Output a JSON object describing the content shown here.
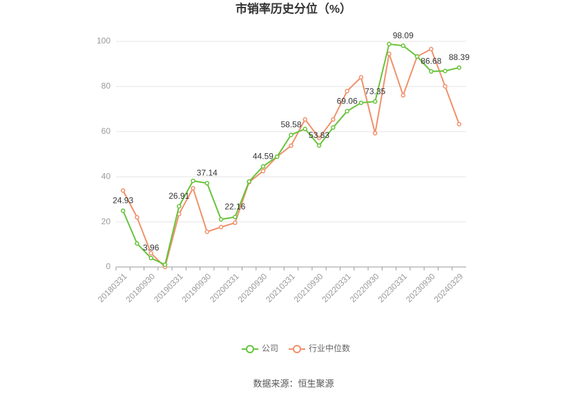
{
  "chart_data": {
    "type": "line",
    "title": "市销率历史分位（%）",
    "categories": [
      "20180331",
      null,
      "20180930",
      null,
      "20190331",
      null,
      "20190930",
      null,
      "20200331",
      null,
      "20200930",
      null,
      "20210331",
      null,
      "20210930",
      null,
      "20220331",
      null,
      "20220930",
      null,
      "20230331",
      null,
      "20230930",
      null,
      "20240329"
    ],
    "series": [
      {
        "name": "公司",
        "color": "#67c23a",
        "values": [
          24.93,
          10.4,
          3.96,
          1.0,
          26.91,
          38.2,
          37.14,
          21.1,
          22.16,
          37.9,
          44.59,
          48.9,
          58.58,
          61.2,
          53.83,
          61.8,
          69.06,
          72.8,
          73.35,
          98.8,
          98.09,
          93.3,
          86.68,
          86.9,
          88.39
        ]
      },
      {
        "name": "行业中位数",
        "color": "#f0906a",
        "values": [
          33.9,
          22.0,
          6.1,
          0.0,
          23.5,
          34.9,
          15.6,
          17.7,
          19.6,
          37.6,
          42.5,
          48.9,
          53.8,
          65.4,
          57.2,
          65.4,
          78.0,
          84.1,
          59.3,
          94.5,
          76.1,
          93.3,
          96.6,
          80.1,
          63.3
        ]
      }
    ],
    "ylim": [
      0,
      100
    ],
    "yticks": [
      0,
      20,
      40,
      60,
      80,
      100
    ],
    "grid": true,
    "legend": "bottom",
    "source": "数据来源：恒生聚源"
  }
}
